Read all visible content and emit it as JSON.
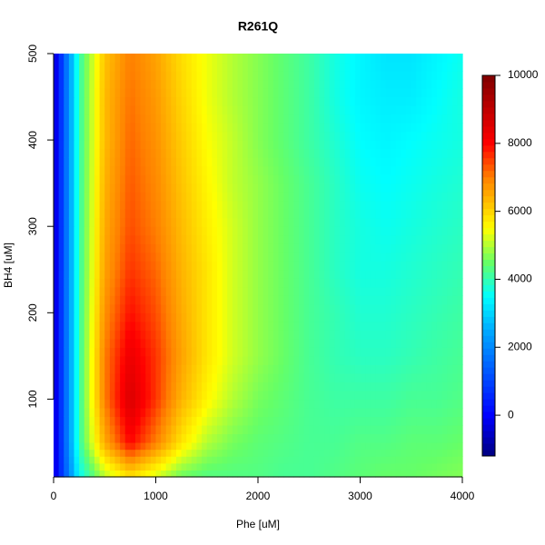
{
  "chart_data": {
    "type": "contour",
    "title": "R261Q",
    "x_label": "Phe [uM]",
    "y_label": "BH4 [uM]",
    "x": [
      0,
      250,
      500,
      750,
      1000,
      1250,
      1500,
      1750,
      2000,
      2250,
      2500,
      2750,
      3000,
      3250,
      3500,
      3750,
      4000
    ],
    "y": [
      10,
      50,
      100,
      150,
      200,
      250,
      300,
      350,
      400,
      450,
      500
    ],
    "z": [
      [
        -500,
        3500,
        5000,
        5800,
        5200,
        4500,
        4300,
        4300,
        4300,
        4200,
        4200,
        4300,
        4400,
        4500,
        4500,
        4600,
        4700
      ],
      [
        -600,
        4000,
        6500,
        8000,
        7000,
        5800,
        5000,
        4600,
        4400,
        4300,
        4200,
        4200,
        4300,
        4300,
        4400,
        4400,
        4500
      ],
      [
        -600,
        4000,
        7000,
        8600,
        7600,
        6400,
        5600,
        5000,
        4600,
        4400,
        4200,
        4100,
        4100,
        4100,
        4200,
        4200,
        4300
      ],
      [
        -600,
        4000,
        7000,
        8300,
        7600,
        6600,
        5800,
        5200,
        4800,
        4500,
        4200,
        4000,
        3900,
        3900,
        4000,
        4100,
        4200
      ],
      [
        -600,
        4000,
        6800,
        7900,
        7400,
        6500,
        5800,
        5200,
        4800,
        4500,
        4200,
        4000,
        3800,
        3800,
        3900,
        4000,
        4100
      ],
      [
        -600,
        4000,
        6600,
        7600,
        7200,
        6400,
        5800,
        5200,
        4800,
        4500,
        4200,
        3900,
        3700,
        3700,
        3800,
        3900,
        4000
      ],
      [
        -600,
        4000,
        6500,
        7400,
        7000,
        6300,
        5700,
        5200,
        4800,
        4500,
        4200,
        3900,
        3700,
        3600,
        3700,
        3800,
        3900
      ],
      [
        -600,
        4000,
        6400,
        7300,
        6900,
        6200,
        5600,
        5100,
        4800,
        4500,
        4200,
        3900,
        3600,
        3500,
        3600,
        3700,
        3800
      ],
      [
        -600,
        4000,
        6300,
        7200,
        6800,
        6100,
        5500,
        5100,
        4700,
        4400,
        4100,
        3800,
        3500,
        3400,
        3500,
        3600,
        3700
      ],
      [
        -600,
        4000,
        6300,
        7100,
        6700,
        6000,
        5400,
        5000,
        4700,
        4400,
        4100,
        3700,
        3400,
        3300,
        3300,
        3500,
        3700
      ],
      [
        -600,
        4000,
        6200,
        7000,
        6600,
        5900,
        5400,
        5000,
        4700,
        4400,
        4100,
        3700,
        3400,
        3200,
        3200,
        3400,
        3600
      ]
    ],
    "xlim": [
      0,
      4000
    ],
    "xticks": [
      0,
      1000,
      2000,
      3000,
      4000
    ],
    "ylim": [
      10,
      500
    ],
    "yticks": [
      100,
      200,
      300,
      400,
      500
    ],
    "zlim": [
      -1200,
      10000
    ],
    "zticks": [
      0,
      2000,
      4000,
      6000,
      8000,
      10000
    ],
    "colormap": [
      {
        "value": -1200,
        "color": "#00007f"
      },
      {
        "value": 0,
        "color": "#0000ff"
      },
      {
        "value": 2500,
        "color": "#00aaff"
      },
      {
        "value": 3500,
        "color": "#00ffff"
      },
      {
        "value": 4500,
        "color": "#66ff66"
      },
      {
        "value": 5500,
        "color": "#ffff00"
      },
      {
        "value": 7000,
        "color": "#ff8000"
      },
      {
        "value": 8000,
        "color": "#ff0000"
      },
      {
        "value": 10000,
        "color": "#7f0000"
      }
    ]
  }
}
